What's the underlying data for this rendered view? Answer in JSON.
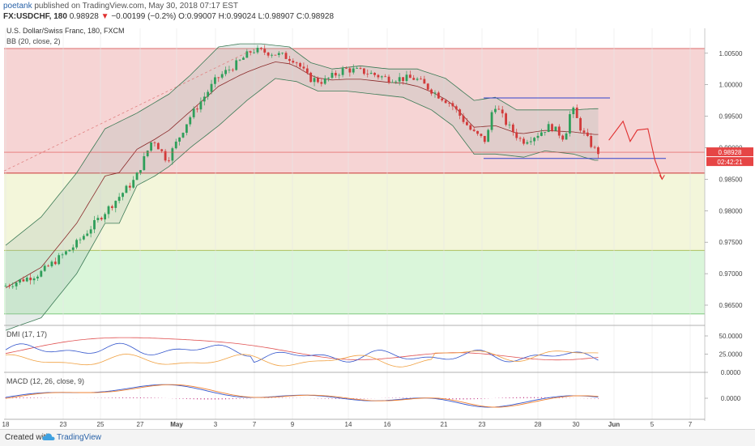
{
  "header": {
    "author": "poetank",
    "published": "published on TradingView.com, May 30, 2018 07:17 EST",
    "symbol": "FX:USDCHF, 180",
    "last": "0.98928",
    "change_arrow": "▼",
    "change": "−0.00199 (−0.2%)",
    "open": "O:0.99007",
    "high": "H:0.99024",
    "low": "L:0.98907",
    "close": "C:0.98928"
  },
  "footer": {
    "created_with": "Created with",
    "brand": "TradingView",
    "logo_icon": "tradingview-cloud-icon"
  },
  "chart_data": {
    "type": "candlestick",
    "title": "U.S. Dollar/Swiss Franc, 180, FXCM",
    "indicator_main": "BB (20, close, 2)",
    "y_ticks": [
      "1.00500",
      "1.00000",
      "0.99500",
      "0.99000",
      "0.98500",
      "0.98000",
      "0.97500",
      "0.97000",
      "0.96500"
    ],
    "x_ticks": [
      "18",
      "23",
      "25",
      "27",
      "May",
      "3",
      "7",
      "9",
      "14",
      "16",
      "21",
      "23",
      "28",
      "30",
      "Jun",
      "5",
      "7"
    ],
    "price_label": "0.98928",
    "countdown_label": "02:42:21",
    "zones": [
      {
        "from": 0.98596,
        "to": 1.00575,
        "color": "#f4cccc"
      },
      {
        "from": 0.9737,
        "to": 0.98596,
        "color": "#f1f5d3"
      },
      {
        "from": 0.9636,
        "to": 0.9737,
        "color": "#d4f4d4"
      }
    ],
    "levels": {
      "zone_top": 1.00575,
      "boundary_red": 0.98596,
      "boundary_green": 0.9737,
      "zone_bottom": 0.9636,
      "current_price": 0.98928,
      "range_top": 0.9979,
      "range_bottom": 0.9883
    },
    "candle_keypoints": [
      {
        "x": 0,
        "y": 0.968
      },
      {
        "x": 10,
        "y": 0.97
      },
      {
        "x": 20,
        "y": 0.9745
      },
      {
        "x": 28,
        "y": 0.9795
      },
      {
        "x": 37,
        "y": 0.985
      },
      {
        "x": 42,
        "y": 0.9915
      },
      {
        "x": 46,
        "y": 0.988
      },
      {
        "x": 52,
        "y": 0.9945
      },
      {
        "x": 60,
        "y": 1.001
      },
      {
        "x": 66,
        "y": 1.0035
      },
      {
        "x": 70,
        "y": 1.0055
      },
      {
        "x": 76,
        "y": 1.005
      },
      {
        "x": 82,
        "y": 1.004
      },
      {
        "x": 86,
        "y": 1.001
      },
      {
        "x": 90,
        "y": 1.0005
      },
      {
        "x": 96,
        "y": 1.0025
      },
      {
        "x": 102,
        "y": 1.002
      },
      {
        "x": 108,
        "y": 1.001
      },
      {
        "x": 116,
        "y": 1.001
      },
      {
        "x": 122,
        "y": 0.9985
      },
      {
        "x": 126,
        "y": 0.997
      },
      {
        "x": 132,
        "y": 0.9925
      },
      {
        "x": 136,
        "y": 0.991
      },
      {
        "x": 138,
        "y": 0.9972
      },
      {
        "x": 142,
        "y": 0.9935
      },
      {
        "x": 146,
        "y": 0.991
      },
      {
        "x": 150,
        "y": 0.992
      },
      {
        "x": 154,
        "y": 0.9935
      },
      {
        "x": 158,
        "y": 0.9915
      },
      {
        "x": 160,
        "y": 0.9965
      },
      {
        "x": 163,
        "y": 0.9925
      },
      {
        "x": 167,
        "y": 0.9893
      }
    ],
    "bb_upper": [
      {
        "x": 0,
        "y": 0.9745
      },
      {
        "x": 10,
        "y": 0.979
      },
      {
        "x": 20,
        "y": 0.986
      },
      {
        "x": 28,
        "y": 0.993
      },
      {
        "x": 37,
        "y": 0.9955
      },
      {
        "x": 46,
        "y": 0.9985
      },
      {
        "x": 52,
        "y": 1.0015
      },
      {
        "x": 60,
        "y": 1.006
      },
      {
        "x": 66,
        "y": 1.0065
      },
      {
        "x": 72,
        "y": 1.0065
      },
      {
        "x": 80,
        "y": 1.006
      },
      {
        "x": 86,
        "y": 1.0035
      },
      {
        "x": 92,
        "y": 1.0025
      },
      {
        "x": 100,
        "y": 1.003
      },
      {
        "x": 108,
        "y": 1.0025
      },
      {
        "x": 116,
        "y": 1.0025
      },
      {
        "x": 124,
        "y": 1.001
      },
      {
        "x": 132,
        "y": 0.9975
      },
      {
        "x": 138,
        "y": 0.998
      },
      {
        "x": 144,
        "y": 0.996
      },
      {
        "x": 152,
        "y": 0.996
      },
      {
        "x": 160,
        "y": 0.996
      },
      {
        "x": 166,
        "y": 0.9962
      }
    ],
    "bb_lower": [
      {
        "x": 0,
        "y": 0.961
      },
      {
        "x": 10,
        "y": 0.963
      },
      {
        "x": 20,
        "y": 0.97
      },
      {
        "x": 28,
        "y": 0.978
      },
      {
        "x": 32,
        "y": 0.978
      },
      {
        "x": 37,
        "y": 0.984
      },
      {
        "x": 42,
        "y": 0.9855
      },
      {
        "x": 46,
        "y": 0.987
      },
      {
        "x": 52,
        "y": 0.99
      },
      {
        "x": 60,
        "y": 0.9935
      },
      {
        "x": 68,
        "y": 0.9975
      },
      {
        "x": 76,
        "y": 1.001
      },
      {
        "x": 82,
        "y": 1.0005
      },
      {
        "x": 88,
        "y": 0.999
      },
      {
        "x": 96,
        "y": 0.999
      },
      {
        "x": 104,
        "y": 0.9985
      },
      {
        "x": 112,
        "y": 0.998
      },
      {
        "x": 120,
        "y": 0.996
      },
      {
        "x": 126,
        "y": 0.9935
      },
      {
        "x": 132,
        "y": 0.989
      },
      {
        "x": 138,
        "y": 0.989
      },
      {
        "x": 146,
        "y": 0.9885
      },
      {
        "x": 152,
        "y": 0.9895
      },
      {
        "x": 160,
        "y": 0.989
      },
      {
        "x": 166,
        "y": 0.988
      }
    ],
    "forecast_path": [
      {
        "x": 170,
        "y": 0.9912
      },
      {
        "x": 174,
        "y": 0.9942
      },
      {
        "x": 176,
        "y": 0.991
      },
      {
        "x": 178,
        "y": 0.9928
      },
      {
        "x": 181,
        "y": 0.993
      },
      {
        "x": 183,
        "y": 0.988
      },
      {
        "x": 185,
        "y": 0.985
      }
    ],
    "dmi": {
      "label": "DMI (17, 17)",
      "y_ticks": [
        "50.0000",
        "25.0000",
        "0.0000"
      ],
      "ylim": [
        0,
        60
      ]
    },
    "macd": {
      "label": "MACD (12, 26, close, 9)",
      "y_ticks": [
        "0.0000"
      ]
    }
  }
}
